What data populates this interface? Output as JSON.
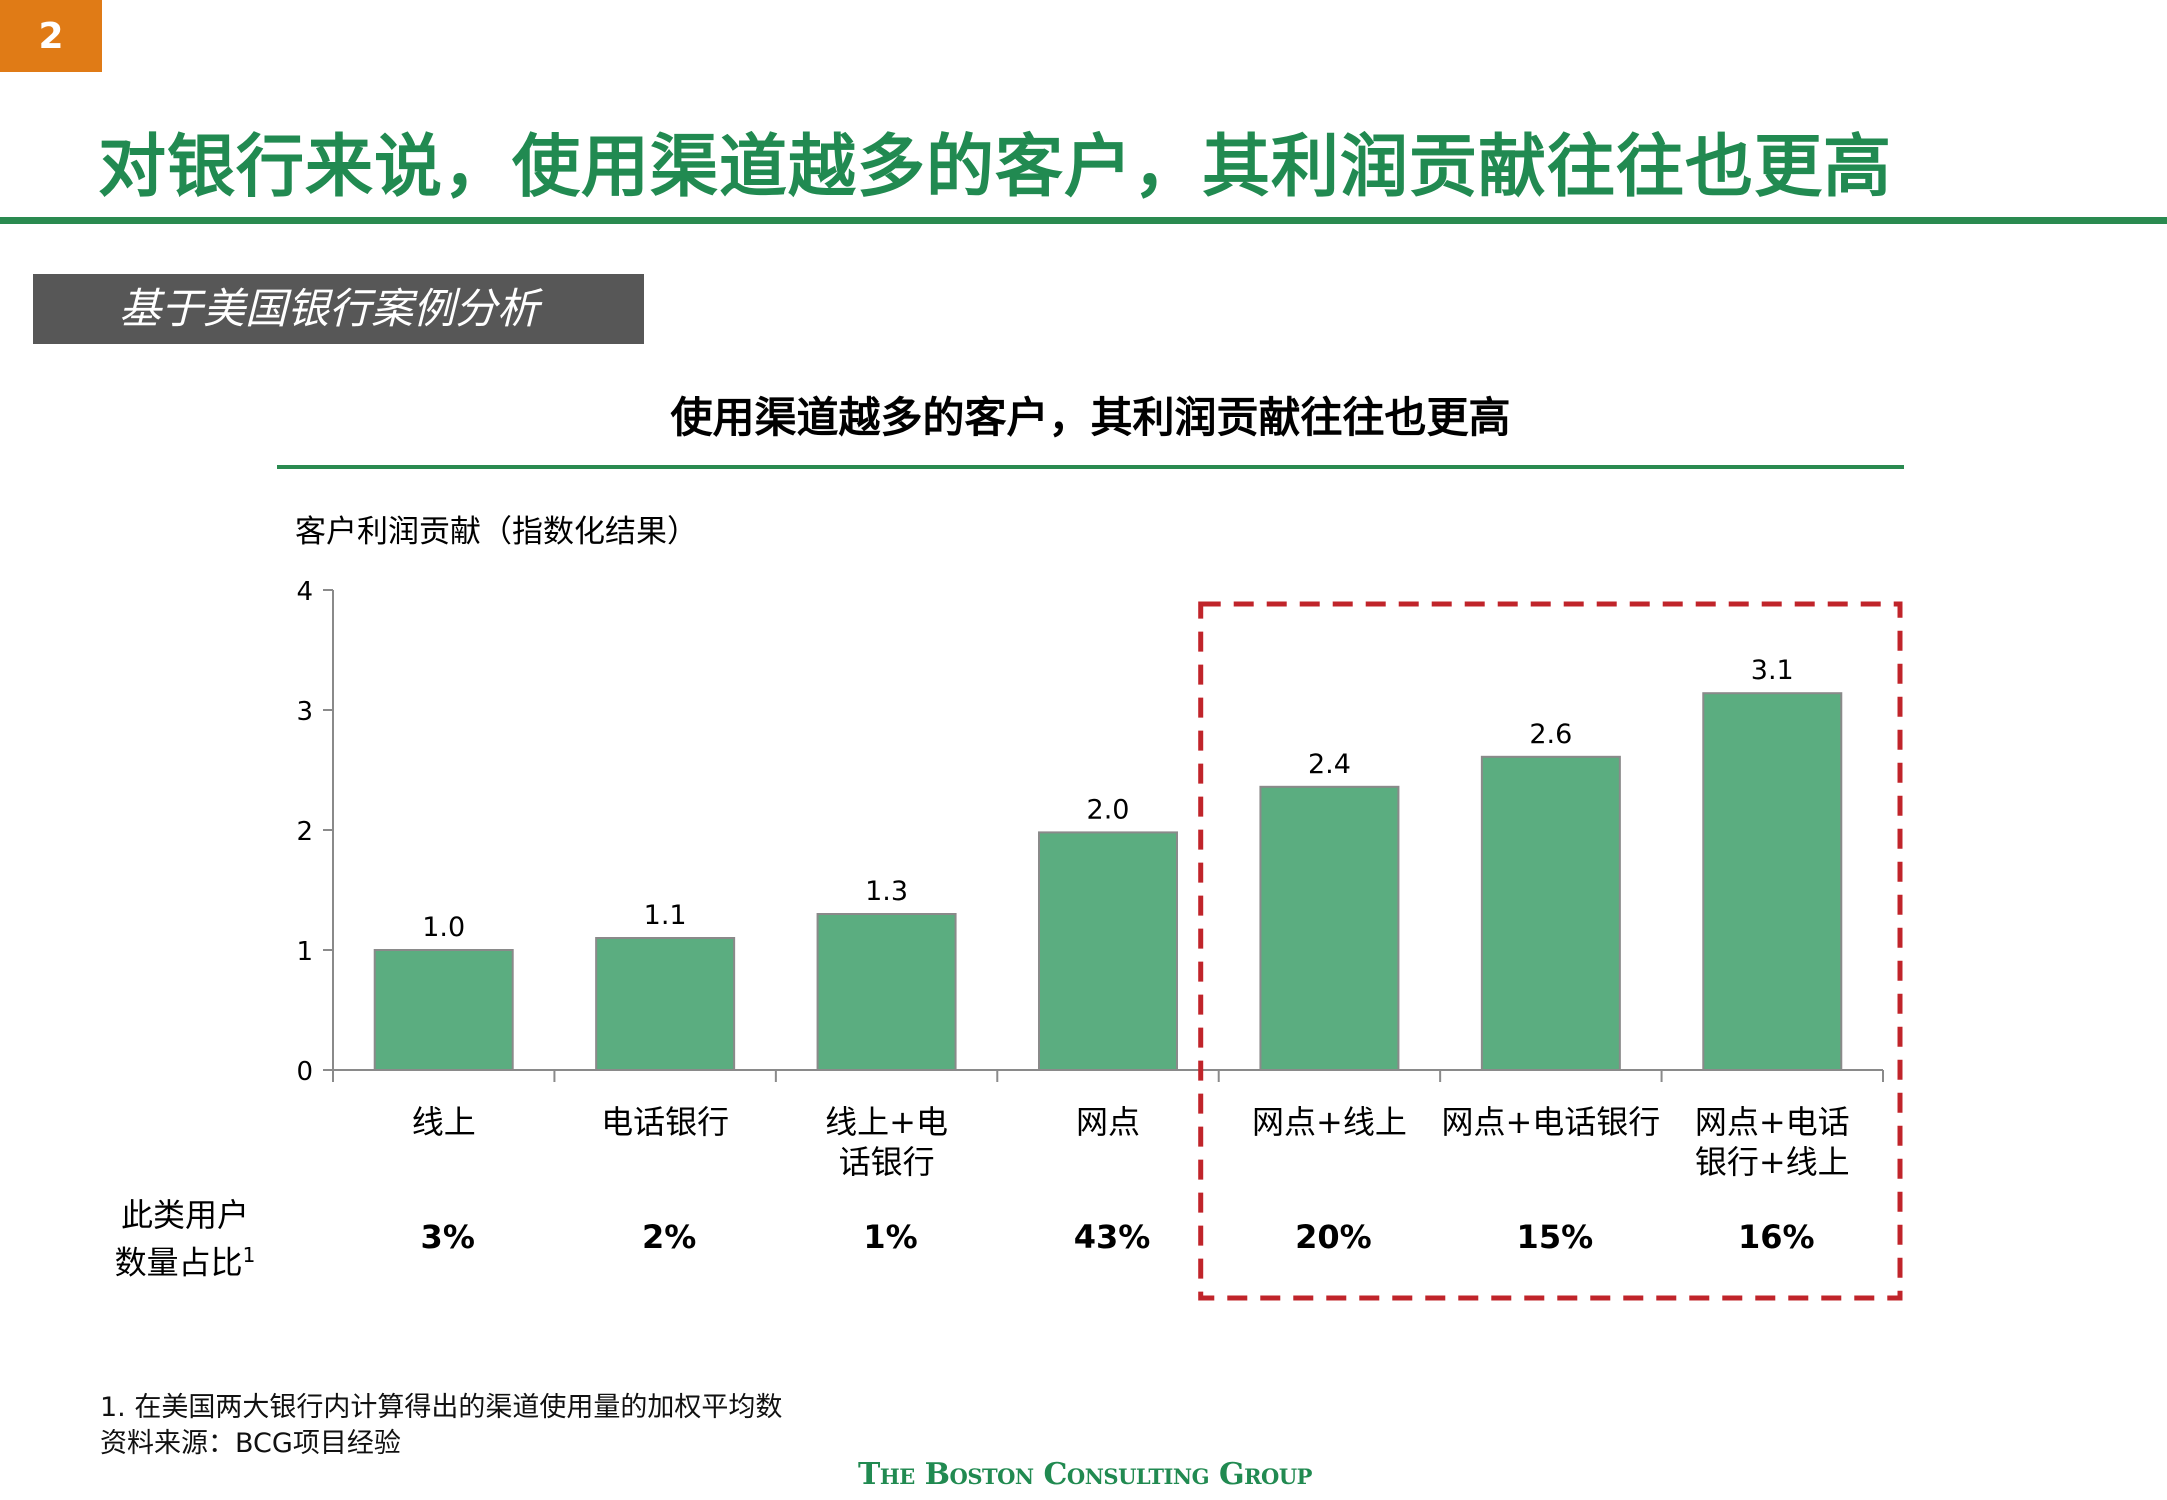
{
  "page": {
    "number": "2",
    "title": "对银行来说，使用渠道越多的客户，其利润贡献往往也更高",
    "section_tag": "基于美国银行案例分析"
  },
  "chart_data": {
    "type": "bar",
    "title": "使用渠道越多的客户，其利润贡献往往也更高",
    "ylabel": "客户利润贡献（指数化结果）",
    "xlabel": "",
    "ylim": [
      0,
      4
    ],
    "yticks": [
      "0",
      "1",
      "2",
      "3",
      "4"
    ],
    "categories": [
      [
        "线上"
      ],
      [
        "电话银行"
      ],
      [
        "线上+电",
        "话银行"
      ],
      [
        "网点"
      ],
      [
        "网点+线上"
      ],
      [
        "网点+电话银行"
      ],
      [
        "网点+电话",
        "银行+线上"
      ]
    ],
    "values": [
      1.0,
      1.1,
      1.3,
      2.0,
      2.4,
      2.6,
      3.1
    ],
    "value_labels": [
      "1.0",
      "1.1",
      "1.3",
      "2.0",
      "2.4",
      "2.6",
      "3.1"
    ],
    "plotted_heights": [
      1.0,
      1.1,
      1.3,
      1.98,
      2.36,
      2.61,
      3.14
    ],
    "bar_color": "#5bad80",
    "bar_edge_color": "#8a8a8a",
    "grid": false,
    "highlight": {
      "categories_from_index": 4,
      "style": "dashed box",
      "color": "#c0242a"
    },
    "share_row": {
      "label_line1": "此类用户",
      "label_line2": "数量占比",
      "label_sup": "1",
      "values": [
        "3%",
        "2%",
        "1%",
        "43%",
        "20%",
        "15%",
        "16%"
      ]
    }
  },
  "footnotes": {
    "note1": "1. 在美国两大银行内计算得出的渠道使用量的加权平均数",
    "source": "资料来源：BCG项目经验"
  },
  "brand": "The Boston Consulting Group",
  "colors": {
    "accent_green": "#218a51",
    "badge_orange": "#e07b16",
    "section_gray": "#575757"
  }
}
